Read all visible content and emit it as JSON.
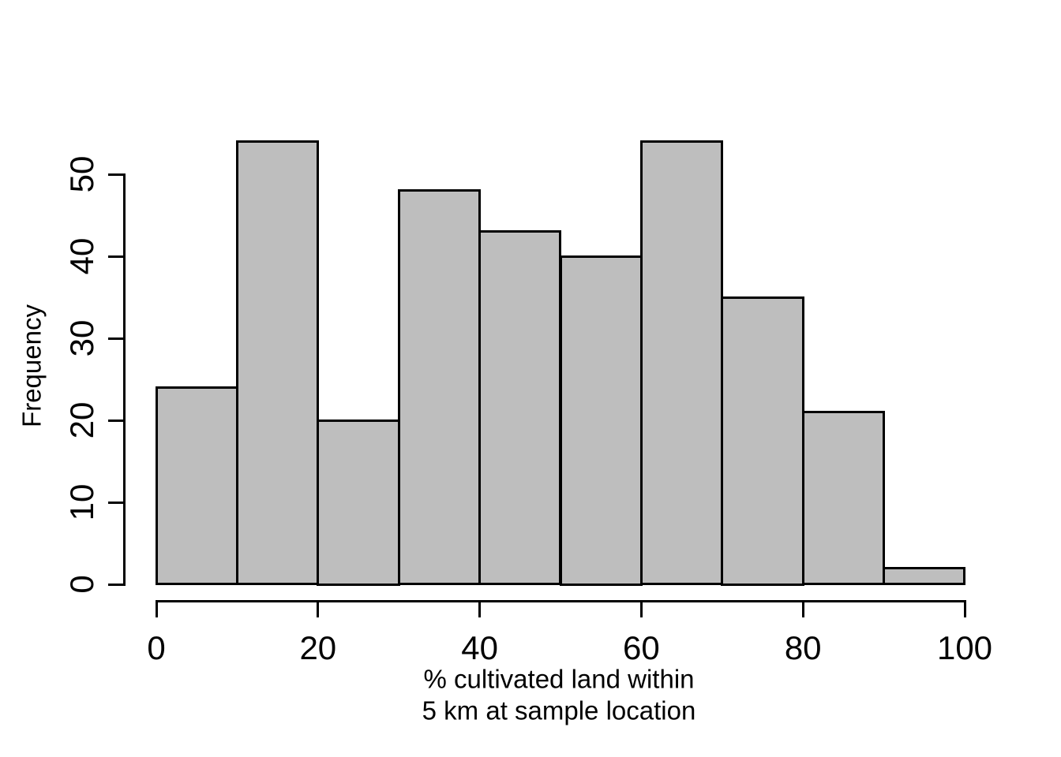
{
  "chart_data": {
    "type": "bar",
    "subtype": "histogram",
    "title": "",
    "xlabel_lines": [
      "% cultivated land within",
      "5 km at sample location"
    ],
    "ylabel": "Frequency",
    "bin_edges": [
      0,
      10,
      20,
      30,
      40,
      50,
      60,
      70,
      80,
      90,
      100
    ],
    "counts": [
      24,
      54,
      20,
      48,
      43,
      40,
      54,
      35,
      21,
      2
    ],
    "x_ticks": [
      0,
      20,
      40,
      60,
      80,
      100
    ],
    "y_ticks": [
      0,
      10,
      20,
      30,
      40,
      50
    ],
    "xlim": [
      0,
      100
    ],
    "ylim": [
      0,
      50
    ],
    "grid": false,
    "legend_position": "none",
    "colors": {
      "bar_fill": "#bebebe",
      "bar_stroke": "#000000",
      "axis": "#000000",
      "text": "#000000",
      "background": "#ffffff"
    }
  }
}
